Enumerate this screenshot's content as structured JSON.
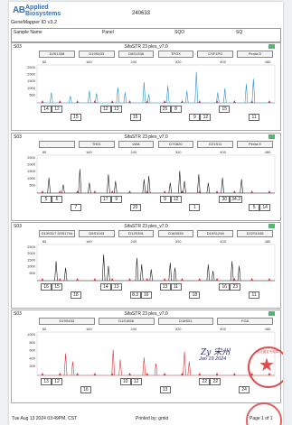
{
  "brand": {
    "logo_mark": "AB",
    "line1": "Applied",
    "line2": "Biosystems"
  },
  "document_id": "240633",
  "software": "GeneMapper ID v3.2",
  "header": {
    "col1": "Sample Name",
    "col2": "Panel",
    "col3": "SQO",
    "col4": "SQ"
  },
  "colors": {
    "blue": "#2a8fcf",
    "green": "#2b2b2b",
    "black": "#1a1a1a",
    "red": "#e0343a",
    "stamp": "#d62f2f"
  },
  "panels": [
    {
      "id": "S03",
      "title": "SifaSTR 23 plex_v7.0",
      "color": "#2a8fcf",
      "markers": [
        "D2S1338",
        "D19S433",
        "D8S1338",
        "TPOX",
        "CSF1PO",
        "Penta D"
      ],
      "ticks": [
        "80",
        "160",
        "240",
        "320",
        "400",
        "480"
      ],
      "yticks": [
        "2500",
        "2000",
        "1500",
        "1000",
        "500"
      ],
      "peaks": [
        [
          0.06,
          0.3
        ],
        [
          0.14,
          0.2
        ],
        [
          0.22,
          0.35
        ],
        [
          0.25,
          0.28
        ],
        [
          0.34,
          0.45
        ],
        [
          0.37,
          0.3
        ],
        [
          0.45,
          0.6
        ],
        [
          0.47,
          0.25
        ],
        [
          0.55,
          0.5
        ],
        [
          0.63,
          0.35
        ],
        [
          0.67,
          0.9
        ],
        [
          0.76,
          0.3
        ],
        [
          0.79,
          0.42
        ],
        [
          0.88,
          0.55
        ],
        [
          0.91,
          0.7
        ]
      ],
      "alleles": [
        [
          "14",
          "12"
        ],
        [
          "15",
          ""
        ],
        [
          "12",
          "13"
        ],
        [
          "15",
          ""
        ],
        [
          "25",
          "8"
        ],
        [
          "9",
          "12"
        ],
        [
          "15",
          ""
        ],
        [
          "11",
          ""
        ]
      ]
    },
    {
      "id": "S03",
      "title": "SifaSTR 23 plex_v7.0",
      "color": "#1a1a1a",
      "markers": [
        "",
        "TH01",
        "vWA",
        "D7S820",
        "D21S11",
        "Penta E"
      ],
      "ticks": [
        "80",
        "160",
        "240",
        "320",
        "400",
        "480"
      ],
      "yticks": [
        "2500",
        "2000",
        "1500",
        "1000",
        "500"
      ],
      "peaks": [
        [
          0.05,
          0.45
        ],
        [
          0.11,
          0.25
        ],
        [
          0.18,
          0.7
        ],
        [
          0.22,
          0.3
        ],
        [
          0.3,
          0.55
        ],
        [
          0.33,
          0.35
        ],
        [
          0.45,
          0.4
        ],
        [
          0.47,
          0.5
        ],
        [
          0.56,
          0.3
        ],
        [
          0.6,
          0.65
        ],
        [
          0.62,
          0.35
        ],
        [
          0.68,
          0.55
        ],
        [
          0.72,
          0.3
        ],
        [
          0.78,
          0.45
        ],
        [
          0.86,
          0.4
        ]
      ],
      "alleles": [
        [
          "5",
          "6"
        ],
        [
          "7",
          ""
        ],
        [
          "17",
          "9"
        ],
        [
          "20",
          ""
        ],
        [
          "9",
          "12"
        ],
        [
          "1",
          ""
        ],
        [
          "30",
          "34.2"
        ],
        [
          "5",
          "14"
        ]
      ]
    },
    {
      "id": "S03",
      "title": "SifaSTR 23 plex_v7.0",
      "color": "#1a1a1a",
      "markers": [
        "D13S317 D3S1744",
        "D6S1043",
        "D12S391",
        "D16S539",
        "D10S1248",
        "D22S1045"
      ],
      "ticks": [
        "80",
        "160",
        "240",
        "320",
        "400",
        "480"
      ],
      "yticks": [
        "2500",
        "2000",
        "1500",
        "1000",
        "500"
      ],
      "peaks": [
        [
          0.08,
          0.6
        ],
        [
          0.12,
          0.4
        ],
        [
          0.28,
          0.8
        ],
        [
          0.3,
          0.45
        ],
        [
          0.42,
          0.7
        ],
        [
          0.44,
          0.5
        ],
        [
          0.48,
          0.35
        ],
        [
          0.56,
          0.55
        ],
        [
          0.58,
          0.4
        ],
        [
          0.72,
          0.5
        ],
        [
          0.74,
          0.3
        ],
        [
          0.82,
          0.6
        ],
        [
          0.85,
          0.45
        ]
      ],
      "alleles": [
        [
          "16",
          "15"
        ],
        [
          "18",
          ""
        ],
        [
          "14",
          "13"
        ],
        [
          "8.3",
          "16"
        ],
        [
          "13",
          "11"
        ],
        [
          "18",
          ""
        ],
        [
          "16",
          "23"
        ],
        [
          "11",
          ""
        ]
      ]
    },
    {
      "id": "S03",
      "title": "SifaSTR 23 plex_v7.0",
      "color": "#e0343a",
      "markers": [
        "D19S433",
        "D1S1656",
        "D18S51",
        "FGA"
      ],
      "ticks": [
        "80",
        "160",
        "240",
        "320",
        "400",
        "480"
      ],
      "yticks": [
        "1000",
        "800",
        "600",
        "400",
        "200"
      ],
      "peaks": [
        [
          0.12,
          0.55
        ],
        [
          0.15,
          0.35
        ],
        [
          0.32,
          0.65
        ],
        [
          0.35,
          0.4
        ],
        [
          0.45,
          0.45
        ],
        [
          0.5,
          0.3
        ],
        [
          0.62,
          0.6
        ],
        [
          0.64,
          0.35
        ]
      ],
      "alleles": [
        [
          "13",
          "12"
        ],
        [
          "16",
          ""
        ],
        [
          "10",
          "12"
        ],
        [
          "13",
          ""
        ],
        [
          "22",
          "22"
        ],
        [
          "24",
          ""
        ]
      ]
    }
  ],
  "signature": {
    "name": "Zy 宋州",
    "date": "Jan 19 2024"
  },
  "stamp": {
    "ring_text": "司法鉴定专用章"
  },
  "footer": {
    "timestamp": "Tue Aug 13 2024 03:49PM, CST",
    "printed_by": "Printed by: gmid",
    "page": "Page 1 of 1"
  }
}
